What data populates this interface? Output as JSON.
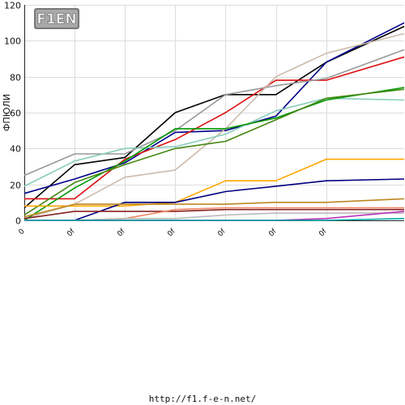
{
  "logo_text": "F1EN",
  "footer": {
    "url": "http://f1.f-e-n.net/"
  },
  "chart_data": {
    "type": "line",
    "ylabel": "ФПЮЛИ",
    "ylim": [
      0,
      120
    ],
    "y_ticks": [
      0,
      20,
      40,
      60,
      80,
      100,
      120
    ],
    "x_tick_labels": [
      "0",
      "0f",
      "0f",
      "0f",
      "0f",
      "0f",
      "0f"
    ],
    "xlim": [
      0,
      7.55
    ],
    "grid": true,
    "series": [
      {
        "color": "#000000",
        "x": [
          0,
          1,
          2,
          3,
          4,
          5,
          6,
          7.55
        ],
        "values": [
          7,
          31,
          35,
          60,
          70,
          70,
          88,
          108
        ]
      },
      {
        "color": "#00008b",
        "x": [
          0,
          1,
          2,
          3,
          4,
          5,
          6,
          7.55
        ],
        "values": [
          15,
          23,
          32,
          49,
          50,
          58,
          88,
          110
        ]
      },
      {
        "color": "#dd1111",
        "x": [
          0,
          1,
          2,
          3,
          4,
          5,
          6,
          7.55
        ],
        "values": [
          12,
          12,
          34,
          45,
          60,
          78,
          78,
          91
        ]
      },
      {
        "color": "#999999",
        "x": [
          0,
          1,
          2,
          3,
          4,
          5,
          6,
          7.55
        ],
        "values": [
          25,
          37,
          37,
          50,
          70,
          75,
          79,
          95
        ]
      },
      {
        "color": "#ccbbaa",
        "x": [
          0,
          1,
          2,
          3,
          4,
          5,
          6,
          7.55
        ],
        "values": [
          1,
          9,
          24,
          28,
          51,
          80,
          93,
          104
        ]
      },
      {
        "color": "#88ccbb",
        "x": [
          0,
          1,
          2,
          3,
          4,
          5,
          6,
          7.55
        ],
        "values": [
          19,
          33,
          40,
          41,
          48,
          61,
          68,
          67
        ]
      },
      {
        "color": "#009900",
        "x": [
          0,
          1,
          2,
          3,
          4,
          5,
          6,
          7.55
        ],
        "values": [
          0,
          18,
          33,
          51,
          51,
          57,
          67,
          74
        ]
      },
      {
        "color": "#448811",
        "x": [
          0,
          1,
          2,
          3,
          4,
          5,
          6,
          7.55
        ],
        "values": [
          3,
          21,
          31,
          40,
          44,
          56,
          68,
          73
        ]
      },
      {
        "color": "#ffa500",
        "x": [
          0,
          1,
          2,
          3,
          4,
          5,
          6,
          7.55
        ],
        "values": [
          8,
          8,
          8,
          10,
          22,
          22,
          34,
          34
        ]
      },
      {
        "color": "#000080",
        "x": [
          0,
          1,
          2,
          3,
          4,
          5,
          6,
          7.55
        ],
        "values": [
          0,
          0,
          10,
          10,
          16,
          19,
          22,
          23
        ]
      },
      {
        "color": "#bb8822",
        "x": [
          0,
          1,
          2,
          3,
          4,
          5,
          6,
          7.55
        ],
        "values": [
          2,
          9,
          9,
          9,
          9,
          10,
          10,
          12
        ]
      },
      {
        "color": "#882222",
        "x": [
          0,
          1,
          2,
          3,
          4,
          5,
          6,
          7.55
        ],
        "values": [
          1,
          5,
          5,
          5,
          6,
          6,
          6,
          6
        ]
      },
      {
        "color": "#ee8866",
        "x": [
          0,
          1,
          2,
          3,
          4,
          5,
          6,
          7.55
        ],
        "values": [
          0,
          0,
          1,
          6,
          7,
          7,
          7,
          7
        ]
      },
      {
        "color": "#bbbbbb",
        "x": [
          0,
          1,
          2,
          3,
          4,
          5,
          6,
          7.55
        ],
        "values": [
          0,
          0,
          1,
          1,
          3,
          4,
          4,
          4
        ]
      },
      {
        "color": "#bb33bb",
        "x": [
          0,
          1,
          2,
          3,
          4,
          5,
          6,
          7.55
        ],
        "values": [
          0,
          0,
          0,
          0,
          0,
          0,
          1,
          5
        ]
      },
      {
        "color": "#00aaaa",
        "x": [
          0,
          1,
          2,
          3,
          4,
          5,
          6,
          7.55
        ],
        "values": [
          0,
          0,
          0,
          0,
          0,
          0,
          0,
          1
        ]
      }
    ]
  }
}
